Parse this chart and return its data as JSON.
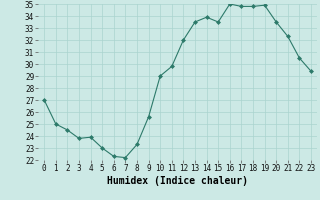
{
  "x": [
    0,
    1,
    2,
    3,
    4,
    5,
    6,
    7,
    8,
    9,
    10,
    11,
    12,
    13,
    14,
    15,
    16,
    17,
    18,
    19,
    20,
    21,
    22,
    23
  ],
  "y": [
    27,
    25,
    24.5,
    23.8,
    23.9,
    23.0,
    22.3,
    22.2,
    23.3,
    25.6,
    29.0,
    29.8,
    32.0,
    33.5,
    33.9,
    33.5,
    35.0,
    34.8,
    34.8,
    34.9,
    33.5,
    32.3,
    30.5,
    29.4
  ],
  "xlabel": "Humidex (Indice chaleur)",
  "ylim": [
    22,
    35
  ],
  "xlim": [
    -0.5,
    23.5
  ],
  "yticks": [
    22,
    23,
    24,
    25,
    26,
    27,
    28,
    29,
    30,
    31,
    32,
    33,
    34,
    35
  ],
  "xticks": [
    0,
    1,
    2,
    3,
    4,
    5,
    6,
    7,
    8,
    9,
    10,
    11,
    12,
    13,
    14,
    15,
    16,
    17,
    18,
    19,
    20,
    21,
    22,
    23
  ],
  "xtick_labels": [
    "0",
    "1",
    "2",
    "3",
    "4",
    "5",
    "6",
    "7",
    "8",
    "9",
    "10",
    "11",
    "12",
    "13",
    "14",
    "15",
    "16",
    "17",
    "18",
    "19",
    "20",
    "21",
    "22",
    "23"
  ],
  "line_color": "#2d7a6a",
  "marker": "D",
  "marker_size": 2.0,
  "bg_color": "#cce9e5",
  "grid_color": "#aad4cf",
  "tick_fontsize": 5.5,
  "label_fontsize": 7.0
}
